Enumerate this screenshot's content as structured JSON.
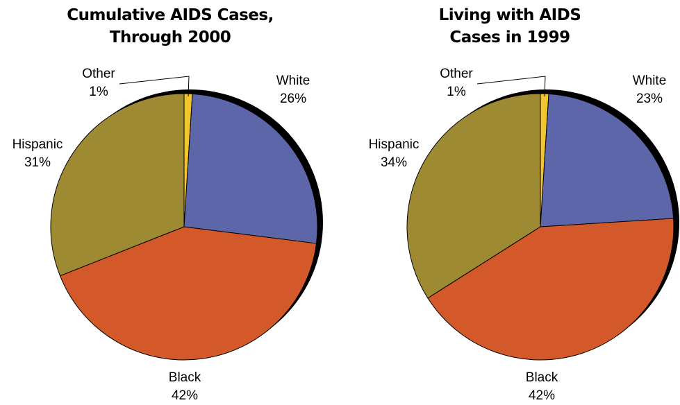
{
  "chart_data": [
    {
      "type": "pie",
      "title_lines": [
        "Cumulative AIDS Cases,",
        "Through 2000"
      ],
      "slices": [
        {
          "label": "White",
          "value": 26,
          "display": "26%",
          "color": "#5E66AA"
        },
        {
          "label": "Black",
          "value": 42,
          "display": "42%",
          "color": "#D3592A"
        },
        {
          "label": "Hispanic",
          "value": 31,
          "display": "31%",
          "color": "#9E8A33"
        },
        {
          "label": "Other",
          "value": 1,
          "display": "1%",
          "color": "#F2C530"
        }
      ]
    },
    {
      "type": "pie",
      "title_lines": [
        "Living with AIDS",
        "Cases in 1999"
      ],
      "slices": [
        {
          "label": "White",
          "value": 23,
          "display": "23%",
          "color": "#5E66AA"
        },
        {
          "label": "Black",
          "value": 42,
          "display": "42%",
          "color": "#D3592A"
        },
        {
          "label": "Hispanic",
          "value": 34,
          "display": "34%",
          "color": "#9E8A33"
        },
        {
          "label": "Other",
          "value": 1,
          "display": "1%",
          "color": "#F2C530"
        }
      ]
    }
  ]
}
